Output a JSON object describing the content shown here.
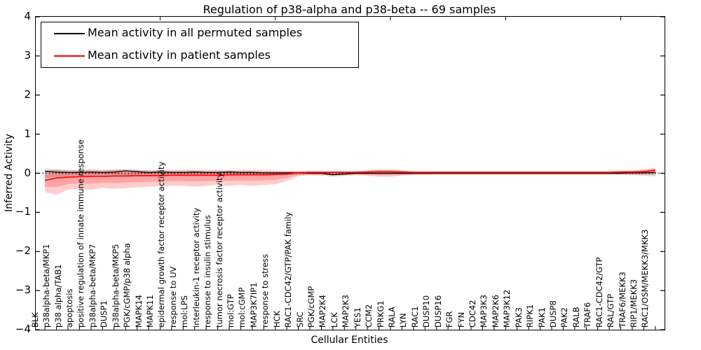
{
  "figure": {
    "title": "Regulation of p38-alpha and p38-beta -- 69 samples",
    "xlabel": "Cellular Entities",
    "ylabel": "Inferred Activity"
  },
  "legend": {
    "items": [
      {
        "label": "Mean activity in all permuted samples",
        "color": "#000000"
      },
      {
        "label": "Mean activity in patient samples",
        "color": "#ff0000"
      }
    ]
  },
  "chart_data": {
    "type": "line",
    "title": "Regulation of p38-alpha and p38-beta -- 69 samples",
    "xlabel": "Cellular Entities",
    "ylabel": "Inferred Activity",
    "ylim": [
      -4,
      4
    ],
    "xlim": [
      -0.8,
      53.8
    ],
    "yticks": [
      4,
      3,
      2,
      1,
      0,
      -1,
      -2,
      -3,
      -4
    ],
    "grid": false,
    "legend_position": "upper left",
    "zero_line": {
      "style": "dotted",
      "color": "#000000",
      "y": 0
    },
    "categories": [
      "BLK",
      "p38alpha-beta/MKP1",
      "p38 alpha/TAB1",
      "apoptosis",
      "positive regulation of innate immune response",
      "p38alpha-beta/MKP7",
      "DUSP1",
      "p38alpha-beta/MKP5",
      "PGK/cGMP/p38 alpha",
      "MAPK14",
      "MAPK11",
      "epidermal growth factor receptor activity",
      "response to UV",
      "mol:LPS",
      "interleukin-1 receptor activity",
      "response to insulin stimulus",
      "tumor necrosis factor receptor activity",
      "mol:GTP",
      "mol:cGMP",
      "MAP3K7IP1",
      "response to stress",
      "HCK",
      "RAC1-CDC42/GTP/PAK family",
      "SRC",
      "PGK/cGMP",
      "MAP2K4",
      "LCK",
      "MAP2K3",
      "YES1",
      "CCM2",
      "PRKG1",
      "RALA",
      "LYN",
      "RAC1",
      "DUSP10",
      "DUSP16",
      "FGR",
      "FYN",
      "CDC42",
      "MAP3K3",
      "MAP2K6",
      "MAP3K12",
      "PAK3",
      "RIPK1",
      "PAK1",
      "DUSP8",
      "PAK2",
      "RALB",
      "TRAF6",
      "RAC1-CDC42/GTP",
      "RAL/GTP",
      "TRAF6/MEKK3",
      "RIP1/MEKK3",
      "RAC1/OSM/MEKK3/MKK3"
    ],
    "series": [
      {
        "name": "Mean activity in all permuted samples",
        "color": "#000000",
        "width": 1.3,
        "values": [
          0.05,
          0.03,
          0.02,
          0.02,
          0.03,
          0.02,
          0.03,
          0.06,
          0.04,
          0.02,
          0.03,
          0.02,
          0.02,
          0.03,
          0.02,
          0.02,
          0.03,
          0.02,
          0.02,
          0.01,
          0.01,
          0.01,
          0.01,
          0.0,
          0.0,
          -0.04,
          -0.02,
          0.0,
          0.0,
          0.0,
          0.0,
          0.0,
          0.0,
          0.0,
          0.0,
          0.0,
          0.0,
          0.0,
          0.0,
          0.0,
          0.0,
          0.0,
          0.0,
          0.0,
          0.0,
          0.0,
          0.0,
          0.0,
          0.0,
          0.0,
          0.0,
          0.01,
          0.01,
          0.02
        ]
      },
      {
        "name": "Mean activity in patient samples",
        "color": "#ff0000",
        "width": 1.6,
        "values": [
          -0.18,
          -0.12,
          -0.1,
          -0.09,
          -0.08,
          -0.08,
          -0.07,
          -0.07,
          -0.06,
          -0.06,
          -0.06,
          -0.05,
          -0.05,
          -0.05,
          -0.05,
          -0.05,
          -0.04,
          -0.04,
          -0.04,
          -0.04,
          -0.03,
          -0.02,
          0.01,
          0.02,
          0.02,
          0.02,
          0.02,
          0.02,
          0.03,
          0.04,
          0.04,
          0.03,
          0.02,
          0.02,
          0.02,
          0.02,
          0.02,
          0.02,
          0.02,
          0.02,
          0.02,
          0.02,
          0.02,
          0.02,
          0.02,
          0.02,
          0.02,
          0.02,
          0.02,
          0.02,
          0.03,
          0.03,
          0.04,
          0.08
        ]
      }
    ],
    "bands": [
      {
        "name": "permuted-std-band",
        "color": "#808080",
        "opacity": 0.28,
        "series_ref": 0,
        "inner_scale": 0,
        "lower": [
          -0.1,
          -0.09,
          -0.08,
          -0.07,
          -0.07,
          -0.06,
          -0.06,
          -0.06,
          -0.06,
          -0.06,
          -0.05,
          -0.05,
          -0.05,
          -0.05,
          -0.05,
          -0.05,
          -0.05,
          -0.05,
          -0.05,
          -0.06,
          -0.06,
          -0.05,
          -0.05,
          -0.05,
          -0.06,
          -0.09,
          -0.07,
          -0.05,
          -0.05,
          -0.05,
          -0.05,
          -0.05,
          -0.04,
          -0.04,
          -0.04,
          -0.04,
          -0.04,
          -0.04,
          -0.04,
          -0.04,
          -0.04,
          -0.04,
          -0.04,
          -0.04,
          -0.04,
          -0.04,
          -0.04,
          -0.04,
          -0.04,
          -0.04,
          -0.04,
          -0.05,
          -0.06,
          -0.08
        ],
        "upper": [
          0.12,
          0.1,
          0.09,
          0.08,
          0.08,
          0.08,
          0.09,
          0.11,
          0.09,
          0.07,
          0.07,
          0.07,
          0.07,
          0.07,
          0.06,
          0.06,
          0.06,
          0.06,
          0.06,
          0.05,
          0.05,
          0.05,
          0.05,
          0.05,
          0.05,
          0.05,
          0.05,
          0.05,
          0.05,
          0.05,
          0.05,
          0.05,
          0.04,
          0.04,
          0.04,
          0.04,
          0.04,
          0.04,
          0.04,
          0.04,
          0.04,
          0.04,
          0.04,
          0.04,
          0.04,
          0.04,
          0.04,
          0.04,
          0.04,
          0.04,
          0.05,
          0.05,
          0.06,
          0.1
        ]
      },
      {
        "name": "patient-std-band",
        "color": "#ff0000",
        "opacity": 0.2,
        "series_ref": 1,
        "inner_scale": 0.55,
        "lower": [
          -0.48,
          -0.55,
          -0.42,
          -0.4,
          -0.42,
          -0.38,
          -0.4,
          -0.38,
          -0.36,
          -0.34,
          -0.33,
          -0.32,
          -0.32,
          -0.34,
          -0.32,
          -0.3,
          -0.32,
          -0.3,
          -0.32,
          -0.3,
          -0.28,
          -0.2,
          -0.07,
          -0.05,
          -0.05,
          -0.05,
          -0.05,
          -0.04,
          -0.06,
          -0.09,
          -0.09,
          -0.06,
          -0.04,
          -0.04,
          -0.03,
          -0.03,
          -0.03,
          -0.03,
          -0.03,
          -0.03,
          -0.03,
          -0.03,
          -0.03,
          -0.03,
          -0.03,
          -0.03,
          -0.03,
          -0.03,
          -0.03,
          -0.03,
          -0.03,
          -0.04,
          -0.04,
          -0.04
        ],
        "upper": [
          0.06,
          0.1,
          0.07,
          0.08,
          0.1,
          0.08,
          0.1,
          0.09,
          0.08,
          0.08,
          0.08,
          0.08,
          0.08,
          0.09,
          0.08,
          0.08,
          0.08,
          0.08,
          0.08,
          0.08,
          0.07,
          0.06,
          0.06,
          0.06,
          0.06,
          0.06,
          0.06,
          0.06,
          0.08,
          0.1,
          0.1,
          0.08,
          0.06,
          0.06,
          0.06,
          0.06,
          0.06,
          0.06,
          0.06,
          0.06,
          0.06,
          0.06,
          0.06,
          0.06,
          0.06,
          0.06,
          0.06,
          0.06,
          0.06,
          0.06,
          0.07,
          0.08,
          0.1,
          0.14
        ]
      }
    ],
    "top_ticks_every": 10
  }
}
